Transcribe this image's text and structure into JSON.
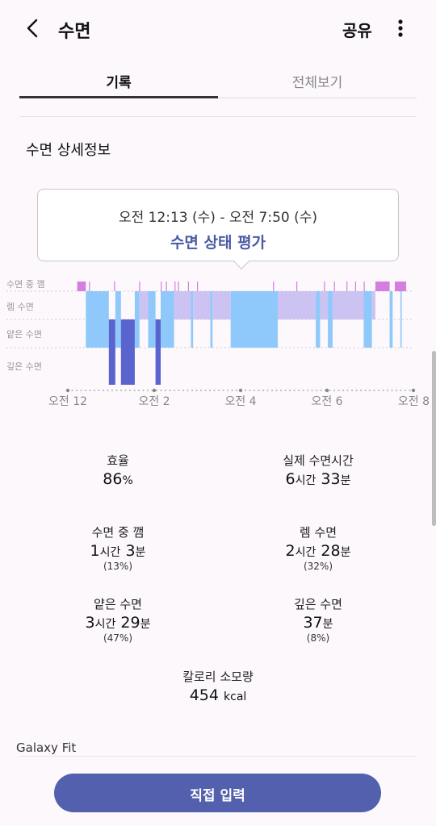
{
  "header": {
    "title": "수면",
    "share_label": "공유"
  },
  "tabs": [
    {
      "label": "기록",
      "active": true
    },
    {
      "label": "전체보기",
      "active": false
    }
  ],
  "section_title": "수면 상세정보",
  "tooltip": {
    "time_range": "오전 12:13 (수) - 오전 7:50 (수)",
    "link": "수면 상태 평가"
  },
  "chart_data": {
    "type": "bar",
    "title": "",
    "stage_labels": [
      "수면 중 깸",
      "렘 수면",
      "얕은 수면",
      "깊은 수면"
    ],
    "x_tick_labels": [
      "오전 12",
      "오전 2",
      "오전 4",
      "오전 6",
      "오전 8"
    ],
    "xlim_hours": [
      0,
      8
    ],
    "start_hour": 0.217,
    "end_hour": 7.833,
    "colors": {
      "awake": "#d47ee0",
      "rem": "#cdc3f2",
      "light": "#8fc9fb",
      "deep": "#5a64cf"
    },
    "segments": [
      {
        "stage": "awake",
        "start": 0.217,
        "end": 0.417
      },
      {
        "stage": "light",
        "start": 0.417,
        "end": 0.95
      },
      {
        "stage": "deep",
        "start": 0.95,
        "end": 1.1
      },
      {
        "stage": "light",
        "start": 1.1,
        "end": 1.23
      },
      {
        "stage": "deep",
        "start": 1.23,
        "end": 1.55
      },
      {
        "stage": "light",
        "start": 1.55,
        "end": 1.66
      },
      {
        "stage": "rem",
        "start": 1.66,
        "end": 1.86
      },
      {
        "stage": "light",
        "start": 1.86,
        "end": 2.03
      },
      {
        "stage": "deep",
        "start": 2.03,
        "end": 2.15
      },
      {
        "stage": "light",
        "start": 2.15,
        "end": 2.46
      },
      {
        "stage": "rem",
        "start": 2.46,
        "end": 2.85
      },
      {
        "stage": "light",
        "start": 2.85,
        "end": 2.9
      },
      {
        "stage": "rem",
        "start": 2.9,
        "end": 3.3
      },
      {
        "stage": "light",
        "start": 3.3,
        "end": 3.35
      },
      {
        "stage": "rem",
        "start": 3.35,
        "end": 3.77
      },
      {
        "stage": "light",
        "start": 3.77,
        "end": 4.86
      },
      {
        "stage": "rem",
        "start": 4.86,
        "end": 5.74
      },
      {
        "stage": "light",
        "start": 5.74,
        "end": 5.84
      },
      {
        "stage": "rem",
        "start": 5.84,
        "end": 6.02
      },
      {
        "stage": "light",
        "start": 6.02,
        "end": 6.13
      },
      {
        "stage": "rem",
        "start": 6.13,
        "end": 6.85
      },
      {
        "stage": "light",
        "start": 6.85,
        "end": 7.04
      },
      {
        "stage": "rem",
        "start": 7.04,
        "end": 7.12
      },
      {
        "stage": "awake",
        "start": 7.12,
        "end": 7.45
      },
      {
        "stage": "light",
        "start": 7.45,
        "end": 7.52
      },
      {
        "stage": "light",
        "start": 7.7,
        "end": 7.73
      },
      {
        "stage": "awake",
        "start": 7.57,
        "end": 7.833
      }
    ],
    "awake_ticks": [
      0.5,
      1.08,
      1.66,
      2.16,
      2.28,
      2.48,
      2.56,
      2.79,
      3.0,
      4.76,
      5.3,
      5.94,
      6.17,
      6.46,
      6.66,
      6.86
    ]
  },
  "stats": {
    "efficiency": {
      "label": "효율",
      "value": "86",
      "unit": "%"
    },
    "actual": {
      "label": "실제 수면시간",
      "h": "6",
      "h_unit": "시간",
      "m": "33",
      "m_unit": "분"
    },
    "awake": {
      "label": "수면 중 깸",
      "h": "1",
      "h_unit": "시간",
      "m": "3",
      "m_unit": "분",
      "pct": "(13%)"
    },
    "rem": {
      "label": "렘 수면",
      "h": "2",
      "h_unit": "시간",
      "m": "28",
      "m_unit": "분",
      "pct": "(32%)"
    },
    "light": {
      "label": "얕은 수면",
      "h": "3",
      "h_unit": "시간",
      "m": "29",
      "m_unit": "분",
      "pct": "(47%)"
    },
    "deep": {
      "label": "깊은 수면",
      "m": "37",
      "m_unit": "분",
      "pct": "(8%)"
    },
    "calories": {
      "label": "칼로리 소모량",
      "value": "454",
      "unit": "kcal"
    }
  },
  "device": "Galaxy Fit",
  "manual_button": "직접 입력",
  "icons": {
    "back": "chevron-left-icon",
    "more": "more-vertical-icon"
  }
}
